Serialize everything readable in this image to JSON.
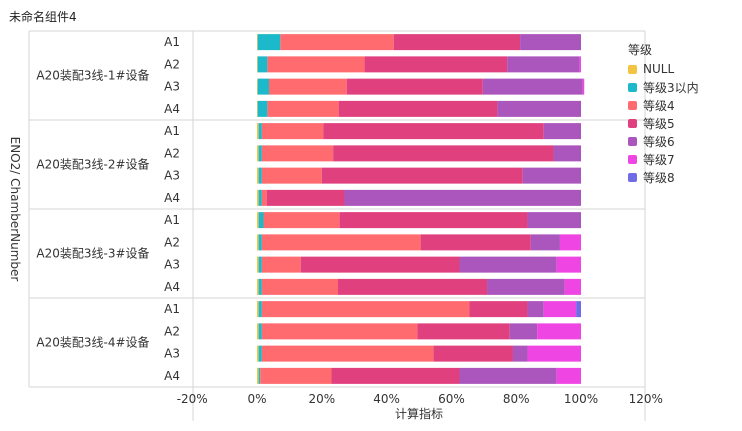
{
  "title": "未命名组件4",
  "chart_data": {
    "type": "bar",
    "orientation": "horizontal",
    "stacked": true,
    "ylabel": "ENO2/ ChamberNumber",
    "xlabel": "计算指标",
    "xlim": [
      -0.2,
      1.2
    ],
    "xticks": [
      "-20%",
      "0%",
      "20%",
      "40%",
      "60%",
      "80%",
      "100%",
      "120%"
    ],
    "legend_title": "等级",
    "legend": [
      "NULL",
      "等级3以内",
      "等级4",
      "等级5",
      "等级6",
      "等级7",
      "等级8"
    ],
    "colors": [
      "#F5C342",
      "#1BB9C9",
      "#FF6B6E",
      "#E0417E",
      "#AA56BC",
      "#EE45E3",
      "#6F6CE6"
    ],
    "groups": [
      {
        "name": "A20装配3线-1#设备",
        "rows": [
          {
            "label": "A1",
            "values": [
              0.002,
              0.07,
              0.35,
              0.39,
              0.188,
              0,
              0
            ]
          },
          {
            "label": "A2",
            "values": [
              0.002,
              0.03,
              0.3,
              0.44,
              0.223,
              0.005,
              0
            ]
          },
          {
            "label": "A3",
            "values": [
              0.002,
              0.035,
              0.24,
              0.42,
              0.308,
              0.005,
              0
            ]
          },
          {
            "label": "A4",
            "values": [
              0.002,
              0.03,
              0.22,
              0.49,
              0.258,
              0,
              0
            ]
          }
        ]
      },
      {
        "name": "A20装配3线-2#设备",
        "rows": [
          {
            "label": "A1",
            "values": [
              0.005,
              0.01,
              0.19,
              0.68,
              0.115,
              0,
              0
            ]
          },
          {
            "label": "A2",
            "values": [
              0.005,
              0.01,
              0.22,
              0.68,
              0.085,
              0,
              0
            ]
          },
          {
            "label": "A3",
            "values": [
              0.005,
              0.01,
              0.185,
              0.62,
              0.18,
              0,
              0
            ]
          },
          {
            "label": "A4",
            "values": [
              0.005,
              0.01,
              0.015,
              0.24,
              0.73,
              0,
              0
            ]
          }
        ]
      },
      {
        "name": "A20装配3线-3#设备",
        "rows": [
          {
            "label": "A1",
            "values": [
              0.005,
              0.015,
              0.235,
              0.58,
              0.165,
              0,
              0
            ]
          },
          {
            "label": "A2",
            "values": [
              0.005,
              0.01,
              0.49,
              0.34,
              0.09,
              0.065,
              0
            ]
          },
          {
            "label": "A3",
            "values": [
              0.005,
              0.01,
              0.12,
              0.49,
              0.3,
              0.075,
              0
            ]
          },
          {
            "label": "A4",
            "values": [
              0.005,
              0.01,
              0.235,
              0.46,
              0.24,
              0.05,
              0
            ]
          }
        ]
      },
      {
        "name": "A20装配3线-4#设备",
        "rows": [
          {
            "label": "A1",
            "values": [
              0.005,
              0.01,
              0.64,
              0.18,
              0.05,
              0.1,
              0.015
            ]
          },
          {
            "label": "A2",
            "values": [
              0.005,
              0.01,
              0.48,
              0.285,
              0.085,
              0.135,
              0
            ]
          },
          {
            "label": "A3",
            "values": [
              0.005,
              0.01,
              0.53,
              0.245,
              0.045,
              0.165,
              0
            ]
          },
          {
            "label": "A4",
            "values": [
              0.005,
              0.005,
              0.22,
              0.395,
              0.3,
              0.075,
              0
            ]
          }
        ]
      }
    ]
  }
}
